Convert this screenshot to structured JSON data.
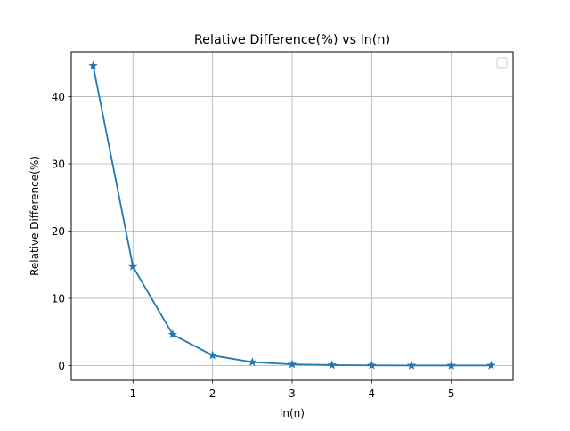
{
  "chart_data": {
    "type": "line",
    "title": "Relative Difference(%) vs ln(n)",
    "xlabel": "ln(n)",
    "ylabel": "Relative Difference(%)",
    "xlim": [
      0.225,
      5.775
    ],
    "ylim": [
      -2.2,
      46.7
    ],
    "xticks": [
      1,
      2,
      3,
      4,
      5
    ],
    "yticks": [
      0,
      10,
      20,
      30,
      40
    ],
    "grid": true,
    "legend": {
      "placement": "top-right",
      "entries": []
    },
    "colors": {
      "line": "#1f77b4",
      "grid": "#b0b0b0",
      "axes": "#000000"
    },
    "marker": "star",
    "series": [
      {
        "x": [
          0.5,
          1.0,
          1.5,
          2.0,
          2.5,
          3.0,
          3.5,
          4.0,
          4.5,
          5.0,
          5.5
        ],
        "values": [
          44.6,
          14.7,
          4.6,
          1.5,
          0.5,
          0.17,
          0.06,
          0.02,
          0.006,
          0.002,
          0.0007
        ]
      }
    ]
  }
}
